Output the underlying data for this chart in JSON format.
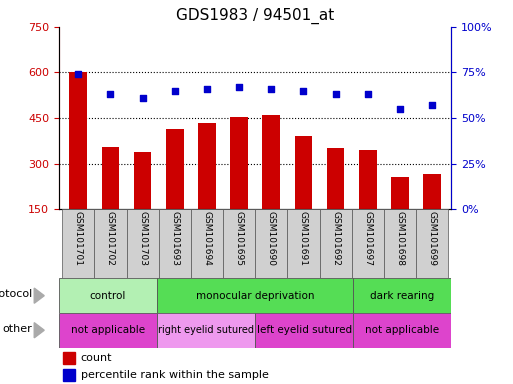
{
  "title": "GDS1983 / 94501_at",
  "samples": [
    "GSM101701",
    "GSM101702",
    "GSM101703",
    "GSM101693",
    "GSM101694",
    "GSM101695",
    "GSM101690",
    "GSM101691",
    "GSM101692",
    "GSM101697",
    "GSM101698",
    "GSM101699"
  ],
  "counts": [
    600,
    355,
    340,
    415,
    435,
    455,
    460,
    390,
    350,
    345,
    255,
    265
  ],
  "percentile": [
    74,
    63,
    61,
    65,
    66,
    67,
    66,
    65,
    63,
    63,
    55,
    57
  ],
  "ylim_left": [
    150,
    750
  ],
  "ylim_right": [
    0,
    100
  ],
  "yticks_left": [
    150,
    300,
    450,
    600,
    750
  ],
  "yticks_right": [
    0,
    25,
    50,
    75,
    100
  ],
  "hlines": [
    300,
    450,
    600
  ],
  "bar_color": "#cc0000",
  "dot_color": "#0000cc",
  "protocol_groups": [
    {
      "label": "control",
      "start": 0,
      "end": 3,
      "color": "#b3f0b3"
    },
    {
      "label": "monocular deprivation",
      "start": 3,
      "end": 9,
      "color": "#55dd55"
    },
    {
      "label": "dark rearing",
      "start": 9,
      "end": 12,
      "color": "#55dd55"
    }
  ],
  "other_groups": [
    {
      "label": "not applicable",
      "start": 0,
      "end": 3,
      "color": "#dd44cc"
    },
    {
      "label": "right eyelid sutured",
      "start": 3,
      "end": 6,
      "color": "#ee99ee"
    },
    {
      "label": "left eyelid sutured",
      "start": 6,
      "end": 9,
      "color": "#dd44cc"
    },
    {
      "label": "not applicable",
      "start": 9,
      "end": 12,
      "color": "#dd44cc"
    }
  ],
  "legend_count_color": "#cc0000",
  "legend_dot_color": "#0000cc",
  "bg_color": "#ffffff",
  "axis_label_color_left": "#cc0000",
  "axis_label_color_right": "#0000cc",
  "title_fontsize": 11,
  "sample_bg": "#d0d0d0"
}
